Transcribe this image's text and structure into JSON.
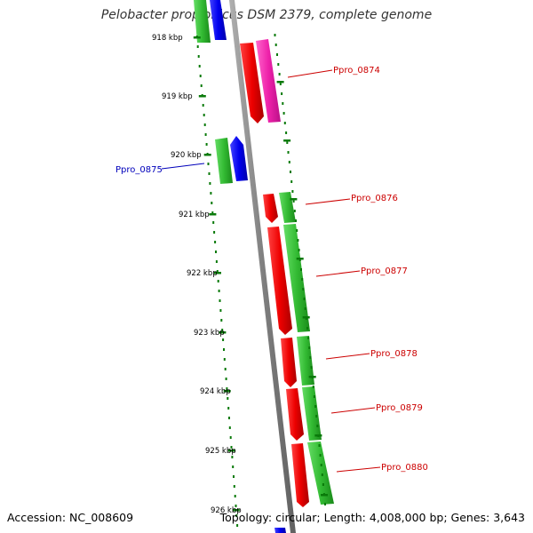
{
  "title": "Pelobacter propionicus DSM 2379, complete genome",
  "footer": {
    "accession": "Accession: NC_008609",
    "summary": "Topology: circular; Length: 4,008,000 bp; Genes: 3,643"
  },
  "colors": {
    "backbone": "#808080",
    "tick": "#0a7a0a",
    "forward_label": "#cc0000",
    "reverse_label": "#0000bb",
    "cds_red": "#ee0000",
    "cds_magenta": "#ee22aa",
    "cds_green": "#33bb33",
    "cds_blue": "#0000ee"
  },
  "scale_labels": [
    "918 kbp",
    "919 kbp",
    "920 kbp",
    "921 kbp",
    "922 kbp",
    "923 kbp",
    "924 kbp",
    "925 kbp",
    "926 kbp"
  ],
  "gene_labels": {
    "ppro_0874": "Ppro_0874",
    "ppro_0875": "Ppro_0875",
    "ppro_0876": "Ppro_0876",
    "ppro_0877": "Ppro_0877",
    "ppro_0878": "Ppro_0878",
    "ppro_0879": "Ppro_0879",
    "ppro_0880": "Ppro_0880"
  }
}
